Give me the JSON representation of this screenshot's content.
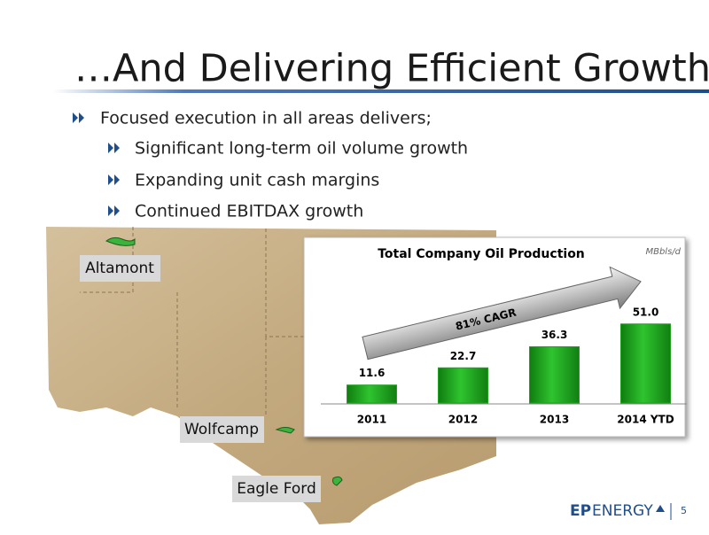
{
  "title": "…And Delivering Efficient Growth",
  "bullets": {
    "main": "Focused execution in all areas delivers;",
    "sub": [
      "Significant long-term oil volume growth",
      "Expanding unit cash margins",
      "Continued EBITDAX growth"
    ]
  },
  "map_labels": [
    "Altamont",
    "Wolfcamp",
    "Eagle Ford"
  ],
  "footer": {
    "logo_left": "EP",
    "logo_right": "ENERGY",
    "page_number": "5"
  },
  "chart_data": {
    "type": "bar",
    "title": "Total Company Oil Production",
    "unit": "MBbls/d",
    "annotation": "81% CAGR",
    "categories": [
      "2011",
      "2012",
      "2013",
      "2014 YTD"
    ],
    "values": [
      11.6,
      22.7,
      36.3,
      51.0
    ],
    "value_labels": [
      "11.6",
      "22.7",
      "36.3",
      "51.0"
    ],
    "color": "#1fa31f"
  }
}
